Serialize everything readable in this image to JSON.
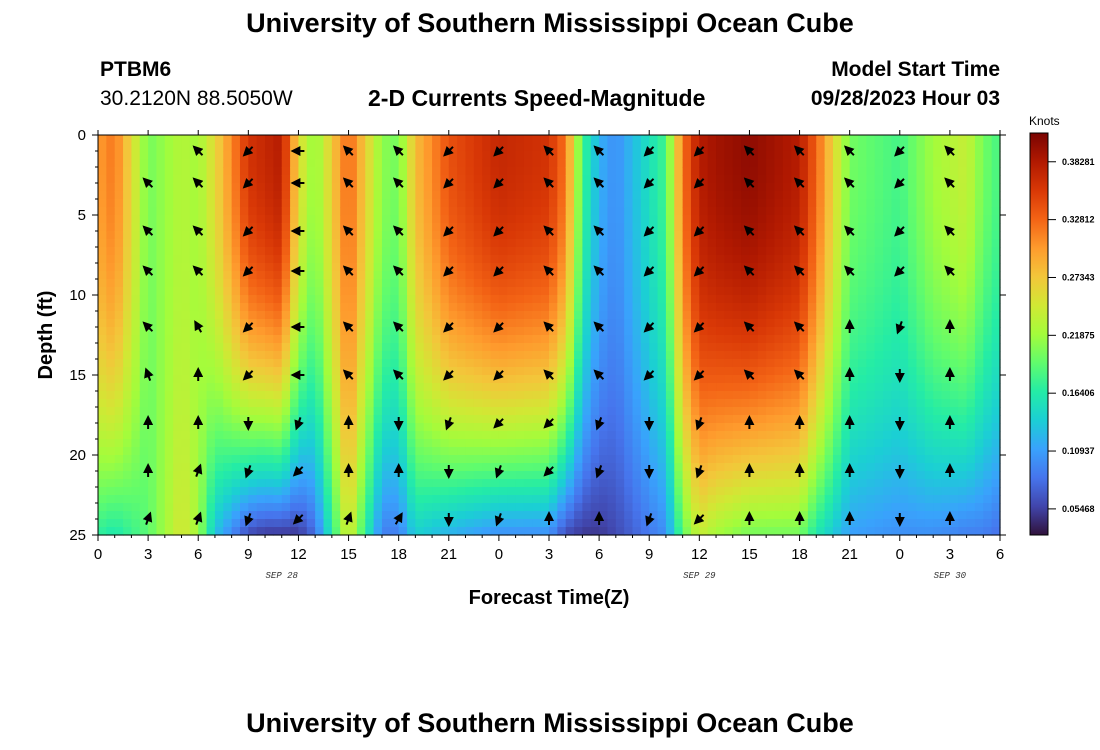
{
  "header": {
    "title": "University of Southern Mississippi Ocean Cube",
    "station": "PTBM6",
    "location": "30.2120N  88.5050W",
    "subtitle": "2-D Currents Speed-Magnitude",
    "model_label": "Model Start Time",
    "model_time": "09/28/2023 Hour 03"
  },
  "footer": {
    "title": "University of Southern Mississippi Ocean Cube"
  },
  "chart_data": {
    "type": "heatmap",
    "title": "2-D Currents Speed-Magnitude",
    "xlabel": "Forecast Time(Z)",
    "ylabel": "Depth (ft)",
    "x_tick_labels": [
      "0",
      "3",
      "6",
      "9",
      "12",
      "15",
      "18",
      "21",
      "0",
      "3",
      "6",
      "9",
      "12",
      "15",
      "18",
      "21",
      "0",
      "3",
      "6"
    ],
    "x_range_hours": [
      0,
      54
    ],
    "y_ticks": [
      0,
      5,
      10,
      15,
      20,
      25
    ],
    "y_tick_labels": [
      "0",
      "5",
      "10",
      "15",
      "20",
      "25"
    ],
    "ylim": [
      0,
      25
    ],
    "y_inverted": true,
    "date_labels": [
      {
        "text": "SEP 28",
        "hour": 11
      },
      {
        "text": "SEP 29",
        "hour": 36
      },
      {
        "text": "SEP 30",
        "hour": 51
      }
    ],
    "colorbar": {
      "unit": "Knots",
      "ticks": [
        "0.38281",
        "0.32812",
        "0.27343",
        "0.21875",
        "0.16406",
        "0.10937",
        "0.05468"
      ],
      "tick_values": [
        0.38281,
        0.32812,
        0.27343,
        0.21875,
        0.16406,
        0.10937,
        0.05468
      ],
      "min": 0.03,
      "max": 0.41,
      "colors": [
        "#30123b",
        "#4145ab",
        "#4675ed",
        "#39a2fc",
        "#1bcfd4",
        "#24eca6",
        "#61fc6c",
        "#a4fc3b",
        "#d1e834",
        "#f3c63a",
        "#fe9b2d",
        "#f36315",
        "#d93806",
        "#b11901",
        "#7a0402"
      ]
    },
    "speed_profile": {
      "hours": [
        0,
        1,
        3,
        5,
        6,
        7,
        9,
        10,
        11,
        12,
        13,
        15,
        17,
        18,
        19,
        21,
        24,
        27,
        28,
        29,
        30,
        31,
        34,
        35,
        36,
        37,
        39,
        42,
        43,
        45,
        48,
        50,
        52,
        53,
        54
      ],
      "surface": [
        0.3,
        0.32,
        0.2,
        0.23,
        0.22,
        0.26,
        0.36,
        0.37,
        0.38,
        0.26,
        0.21,
        0.33,
        0.21,
        0.2,
        0.28,
        0.34,
        0.37,
        0.36,
        0.32,
        0.18,
        0.12,
        0.1,
        0.18,
        0.32,
        0.38,
        0.39,
        0.4,
        0.38,
        0.33,
        0.2,
        0.18,
        0.22,
        0.24,
        0.2,
        0.18
      ],
      "bottom": [
        0.17,
        0.16,
        0.19,
        0.25,
        0.22,
        0.13,
        0.06,
        0.05,
        0.05,
        0.05,
        0.08,
        0.25,
        0.09,
        0.09,
        0.14,
        0.12,
        0.1,
        0.1,
        0.06,
        0.05,
        0.05,
        0.06,
        0.1,
        0.19,
        0.24,
        0.22,
        0.2,
        0.2,
        0.16,
        0.11,
        0.1,
        0.1,
        0.09,
        0.09,
        0.08
      ]
    },
    "vectors": {
      "hours": [
        3,
        6,
        9,
        12,
        15,
        18,
        21,
        24,
        27,
        30,
        33,
        36,
        39,
        42,
        45,
        48,
        51
      ],
      "depths": [
        1,
        3,
        6,
        8.5,
        12,
        15,
        18,
        21,
        24
      ],
      "direction_deg": [
        [
          null,
          315,
          225,
          270,
          315,
          315,
          225,
          225,
          315,
          315,
          225,
          225,
          315,
          315,
          315,
          225,
          315
        ],
        [
          315,
          315,
          225,
          270,
          315,
          315,
          225,
          225,
          315,
          315,
          225,
          225,
          315,
          315,
          315,
          225,
          315
        ],
        [
          315,
          315,
          225,
          270,
          315,
          315,
          225,
          225,
          315,
          315,
          225,
          225,
          315,
          315,
          315,
          225,
          315
        ],
        [
          315,
          315,
          225,
          270,
          315,
          315,
          225,
          225,
          315,
          315,
          225,
          225,
          315,
          315,
          315,
          225,
          315
        ],
        [
          315,
          330,
          225,
          270,
          315,
          315,
          225,
          225,
          315,
          315,
          225,
          225,
          315,
          315,
          0,
          200,
          0
        ],
        [
          340,
          0,
          225,
          270,
          315,
          315,
          225,
          225,
          315,
          315,
          225,
          225,
          315,
          315,
          0,
          180,
          0
        ],
        [
          0,
          0,
          180,
          200,
          0,
          180,
          200,
          225,
          225,
          200,
          180,
          200,
          0,
          0,
          0,
          180,
          0
        ],
        [
          0,
          20,
          200,
          225,
          0,
          0,
          180,
          200,
          225,
          200,
          180,
          200,
          0,
          0,
          0,
          180,
          0
        ],
        [
          20,
          20,
          200,
          225,
          20,
          30,
          180,
          200,
          0,
          0,
          200,
          225,
          0,
          0,
          0,
          180,
          0
        ]
      ]
    }
  }
}
